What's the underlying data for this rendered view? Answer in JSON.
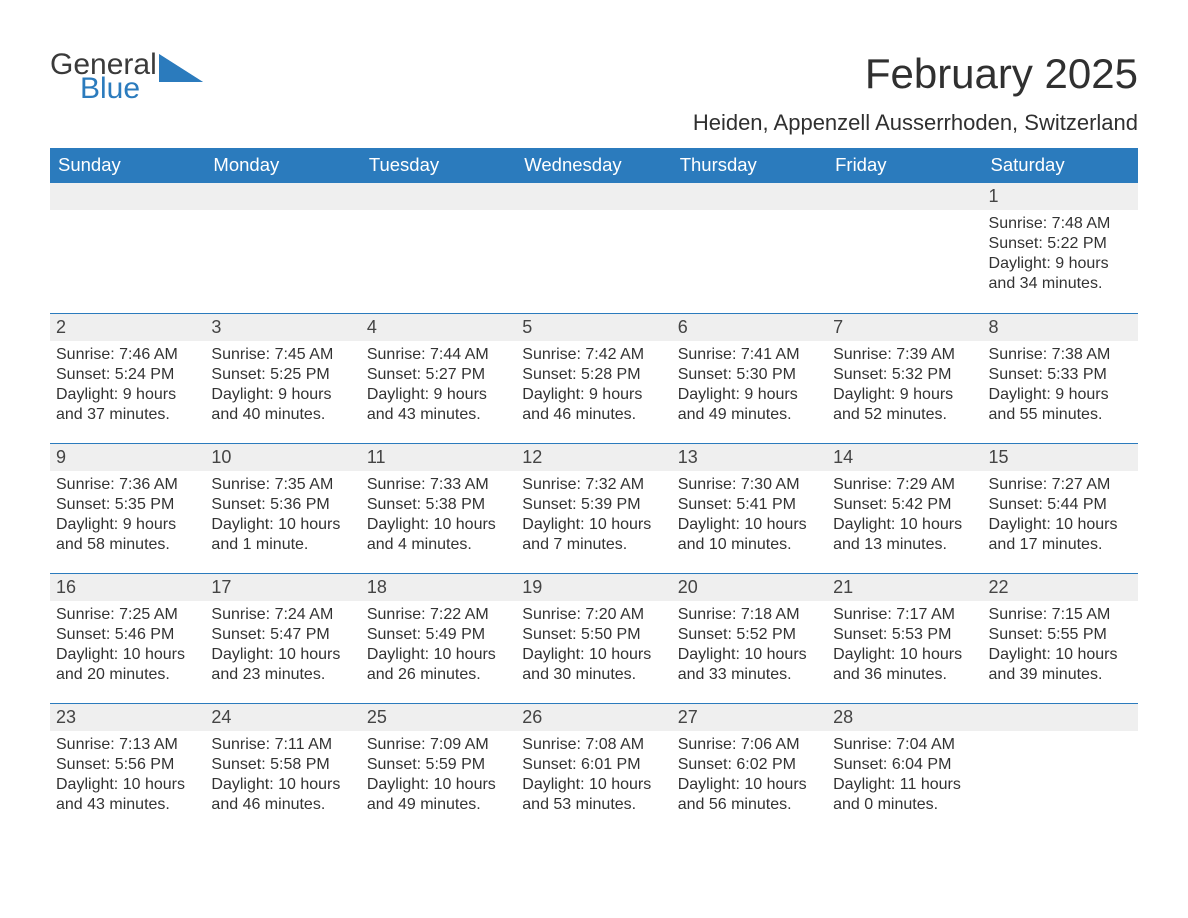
{
  "brand": {
    "word1": "General",
    "word2": "Blue",
    "word1_color": "#3a3a3a",
    "word2_color": "#2b7bbd",
    "triangle_color": "#2b7bbd"
  },
  "title": "February 2025",
  "location": "Heiden, Appenzell Ausserrhoden, Switzerland",
  "colors": {
    "header_bg": "#2b7bbd",
    "header_text": "#ffffff",
    "daynum_band_bg": "#efefef",
    "week_border": "#2b7bbd",
    "body_text": "#333333",
    "page_bg": "#ffffff"
  },
  "font_sizes": {
    "month_title_pt": 32,
    "location_pt": 17,
    "weekday_pt": 14,
    "daynum_pt": 14,
    "body_pt": 12
  },
  "weekdays": [
    "Sunday",
    "Monday",
    "Tuesday",
    "Wednesday",
    "Thursday",
    "Friday",
    "Saturday"
  ],
  "weeks": [
    [
      {
        "num": "",
        "sunrise": "",
        "sunset": "",
        "daylight": ""
      },
      {
        "num": "",
        "sunrise": "",
        "sunset": "",
        "daylight": ""
      },
      {
        "num": "",
        "sunrise": "",
        "sunset": "",
        "daylight": ""
      },
      {
        "num": "",
        "sunrise": "",
        "sunset": "",
        "daylight": ""
      },
      {
        "num": "",
        "sunrise": "",
        "sunset": "",
        "daylight": ""
      },
      {
        "num": "",
        "sunrise": "",
        "sunset": "",
        "daylight": ""
      },
      {
        "num": "1",
        "sunrise": "Sunrise: 7:48 AM",
        "sunset": "Sunset: 5:22 PM",
        "daylight": "Daylight: 9 hours and 34 minutes."
      }
    ],
    [
      {
        "num": "2",
        "sunrise": "Sunrise: 7:46 AM",
        "sunset": "Sunset: 5:24 PM",
        "daylight": "Daylight: 9 hours and 37 minutes."
      },
      {
        "num": "3",
        "sunrise": "Sunrise: 7:45 AM",
        "sunset": "Sunset: 5:25 PM",
        "daylight": "Daylight: 9 hours and 40 minutes."
      },
      {
        "num": "4",
        "sunrise": "Sunrise: 7:44 AM",
        "sunset": "Sunset: 5:27 PM",
        "daylight": "Daylight: 9 hours and 43 minutes."
      },
      {
        "num": "5",
        "sunrise": "Sunrise: 7:42 AM",
        "sunset": "Sunset: 5:28 PM",
        "daylight": "Daylight: 9 hours and 46 minutes."
      },
      {
        "num": "6",
        "sunrise": "Sunrise: 7:41 AM",
        "sunset": "Sunset: 5:30 PM",
        "daylight": "Daylight: 9 hours and 49 minutes."
      },
      {
        "num": "7",
        "sunrise": "Sunrise: 7:39 AM",
        "sunset": "Sunset: 5:32 PM",
        "daylight": "Daylight: 9 hours and 52 minutes."
      },
      {
        "num": "8",
        "sunrise": "Sunrise: 7:38 AM",
        "sunset": "Sunset: 5:33 PM",
        "daylight": "Daylight: 9 hours and 55 minutes."
      }
    ],
    [
      {
        "num": "9",
        "sunrise": "Sunrise: 7:36 AM",
        "sunset": "Sunset: 5:35 PM",
        "daylight": "Daylight: 9 hours and 58 minutes."
      },
      {
        "num": "10",
        "sunrise": "Sunrise: 7:35 AM",
        "sunset": "Sunset: 5:36 PM",
        "daylight": "Daylight: 10 hours and 1 minute."
      },
      {
        "num": "11",
        "sunrise": "Sunrise: 7:33 AM",
        "sunset": "Sunset: 5:38 PM",
        "daylight": "Daylight: 10 hours and 4 minutes."
      },
      {
        "num": "12",
        "sunrise": "Sunrise: 7:32 AM",
        "sunset": "Sunset: 5:39 PM",
        "daylight": "Daylight: 10 hours and 7 minutes."
      },
      {
        "num": "13",
        "sunrise": "Sunrise: 7:30 AM",
        "sunset": "Sunset: 5:41 PM",
        "daylight": "Daylight: 10 hours and 10 minutes."
      },
      {
        "num": "14",
        "sunrise": "Sunrise: 7:29 AM",
        "sunset": "Sunset: 5:42 PM",
        "daylight": "Daylight: 10 hours and 13 minutes."
      },
      {
        "num": "15",
        "sunrise": "Sunrise: 7:27 AM",
        "sunset": "Sunset: 5:44 PM",
        "daylight": "Daylight: 10 hours and 17 minutes."
      }
    ],
    [
      {
        "num": "16",
        "sunrise": "Sunrise: 7:25 AM",
        "sunset": "Sunset: 5:46 PM",
        "daylight": "Daylight: 10 hours and 20 minutes."
      },
      {
        "num": "17",
        "sunrise": "Sunrise: 7:24 AM",
        "sunset": "Sunset: 5:47 PM",
        "daylight": "Daylight: 10 hours and 23 minutes."
      },
      {
        "num": "18",
        "sunrise": "Sunrise: 7:22 AM",
        "sunset": "Sunset: 5:49 PM",
        "daylight": "Daylight: 10 hours and 26 minutes."
      },
      {
        "num": "19",
        "sunrise": "Sunrise: 7:20 AM",
        "sunset": "Sunset: 5:50 PM",
        "daylight": "Daylight: 10 hours and 30 minutes."
      },
      {
        "num": "20",
        "sunrise": "Sunrise: 7:18 AM",
        "sunset": "Sunset: 5:52 PM",
        "daylight": "Daylight: 10 hours and 33 minutes."
      },
      {
        "num": "21",
        "sunrise": "Sunrise: 7:17 AM",
        "sunset": "Sunset: 5:53 PM",
        "daylight": "Daylight: 10 hours and 36 minutes."
      },
      {
        "num": "22",
        "sunrise": "Sunrise: 7:15 AM",
        "sunset": "Sunset: 5:55 PM",
        "daylight": "Daylight: 10 hours and 39 minutes."
      }
    ],
    [
      {
        "num": "23",
        "sunrise": "Sunrise: 7:13 AM",
        "sunset": "Sunset: 5:56 PM",
        "daylight": "Daylight: 10 hours and 43 minutes."
      },
      {
        "num": "24",
        "sunrise": "Sunrise: 7:11 AM",
        "sunset": "Sunset: 5:58 PM",
        "daylight": "Daylight: 10 hours and 46 minutes."
      },
      {
        "num": "25",
        "sunrise": "Sunrise: 7:09 AM",
        "sunset": "Sunset: 5:59 PM",
        "daylight": "Daylight: 10 hours and 49 minutes."
      },
      {
        "num": "26",
        "sunrise": "Sunrise: 7:08 AM",
        "sunset": "Sunset: 6:01 PM",
        "daylight": "Daylight: 10 hours and 53 minutes."
      },
      {
        "num": "27",
        "sunrise": "Sunrise: 7:06 AM",
        "sunset": "Sunset: 6:02 PM",
        "daylight": "Daylight: 10 hours and 56 minutes."
      },
      {
        "num": "28",
        "sunrise": "Sunrise: 7:04 AM",
        "sunset": "Sunset: 6:04 PM",
        "daylight": "Daylight: 11 hours and 0 minutes."
      },
      {
        "num": "",
        "sunrise": "",
        "sunset": "",
        "daylight": ""
      }
    ]
  ]
}
